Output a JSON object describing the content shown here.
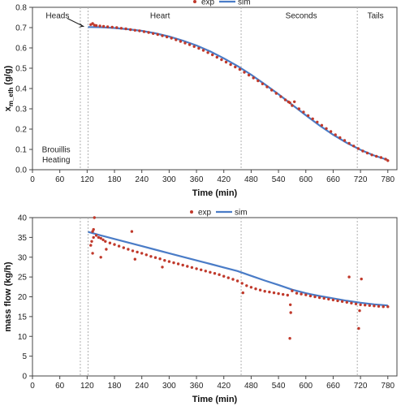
{
  "chart_data": [
    {
      "type": "scatter",
      "xlabel": "Time (min)",
      "ylabel_main": "x",
      "ylabel_sub": "m_eth",
      "ylabel_unit": "(g/g)",
      "xlim": [
        0,
        800
      ],
      "ylim": [
        0,
        0.8
      ],
      "xticks": [
        0,
        60,
        120,
        180,
        240,
        300,
        360,
        420,
        480,
        540,
        600,
        660,
        720,
        780
      ],
      "yticks": [
        0.0,
        0.1,
        0.2,
        0.3,
        0.4,
        0.5,
        0.6,
        0.7,
        0.8
      ],
      "ytick_labels": [
        "0.0",
        "0.1",
        "0.2",
        "0.3",
        "0.4",
        "0.5",
        "0.6",
        "0.7",
        "0.8"
      ],
      "legend": {
        "position": "top-center",
        "entries": [
          "exp",
          "sim"
        ]
      },
      "colors": {
        "exp": "#c0392b",
        "sim": "#4a7cc7",
        "divider": "#b0b0b0"
      },
      "dividers": [
        105,
        122,
        458,
        713
      ],
      "annotations": [
        {
          "text": "Heads",
          "x": 55,
          "y": 0.76
        },
        {
          "text": "Heart",
          "x": 280,
          "y": 0.76
        },
        {
          "text": "Seconds",
          "x": 590,
          "y": 0.76
        },
        {
          "text": "Tails",
          "x": 753,
          "y": 0.76
        },
        {
          "text": "Brouillis",
          "x": 52,
          "y": 0.1
        },
        {
          "text": "Heating",
          "x": 52,
          "y": 0.05
        }
      ],
      "series": [
        {
          "name": "sim",
          "kind": "line",
          "x": [
            122,
            150,
            180,
            210,
            240,
            270,
            300,
            330,
            360,
            390,
            420,
            450,
            480,
            510,
            540,
            570,
            600,
            630,
            660,
            690,
            720,
            750,
            780
          ],
          "y": [
            0.703,
            0.702,
            0.698,
            0.692,
            0.684,
            0.672,
            0.656,
            0.636,
            0.612,
            0.583,
            0.549,
            0.511,
            0.468,
            0.421,
            0.372,
            0.32,
            0.268,
            0.218,
            0.172,
            0.132,
            0.098,
            0.07,
            0.048
          ]
        },
        {
          "name": "exp",
          "kind": "points",
          "x": [
            128,
            132,
            136,
            140,
            148,
            156,
            165,
            175,
            185,
            195,
            205,
            215,
            225,
            235,
            245,
            255,
            265,
            275,
            285,
            295,
            305,
            315,
            325,
            335,
            345,
            355,
            365,
            375,
            385,
            395,
            405,
            415,
            425,
            435,
            445,
            455,
            465,
            475,
            485,
            495,
            505,
            515,
            525,
            535,
            545,
            555,
            562,
            565,
            570,
            575,
            585,
            595,
            605,
            615,
            625,
            635,
            645,
            655,
            665,
            675,
            685,
            695,
            705,
            715,
            725,
            735,
            745,
            755,
            765,
            775,
            780
          ],
          "y": [
            0.715,
            0.72,
            0.712,
            0.71,
            0.708,
            0.706,
            0.704,
            0.702,
            0.7,
            0.697,
            0.694,
            0.69,
            0.687,
            0.684,
            0.68,
            0.676,
            0.671,
            0.666,
            0.66,
            0.654,
            0.648,
            0.64,
            0.632,
            0.624,
            0.616,
            0.607,
            0.598,
            0.588,
            0.577,
            0.566,
            0.554,
            0.542,
            0.53,
            0.518,
            0.506,
            0.494,
            0.48,
            0.466,
            0.452,
            0.438,
            0.423,
            0.408,
            0.392,
            0.376,
            0.36,
            0.344,
            0.334,
            0.33,
            0.316,
            0.335,
            0.3,
            0.284,
            0.267,
            0.251,
            0.235,
            0.219,
            0.203,
            0.188,
            0.172,
            0.158,
            0.144,
            0.13,
            0.117,
            0.104,
            0.092,
            0.082,
            0.073,
            0.066,
            0.06,
            0.052,
            0.045
          ]
        }
      ]
    },
    {
      "type": "scatter",
      "xlabel": "Time (min)",
      "ylabel": "mass flow (kg/h)",
      "xlim": [
        0,
        800
      ],
      "ylim": [
        0,
        40
      ],
      "xticks": [
        0,
        60,
        120,
        180,
        240,
        300,
        360,
        420,
        480,
        540,
        600,
        660,
        720,
        780
      ],
      "yticks": [
        0,
        5,
        10,
        15,
        20,
        25,
        30,
        35,
        40
      ],
      "ytick_labels": [
        "0",
        "5",
        "10",
        "15",
        "20",
        "25",
        "30",
        "35",
        "40"
      ],
      "legend": {
        "position": "top-center",
        "entries": [
          "exp",
          "sim"
        ]
      },
      "colors": {
        "exp": "#c0392b",
        "sim": "#4a7cc7",
        "divider": "#b0b0b0"
      },
      "dividers": [
        105,
        122,
        458,
        713
      ],
      "series": [
        {
          "name": "sim",
          "kind": "line",
          "x": [
            122,
            150,
            180,
            210,
            240,
            270,
            300,
            330,
            360,
            390,
            420,
            450,
            480,
            510,
            540,
            570,
            600,
            630,
            660,
            690,
            720,
            750,
            780
          ],
          "y": [
            36.4,
            35.5,
            34.6,
            33.7,
            32.8,
            31.9,
            31.0,
            30.1,
            29.2,
            28.3,
            27.4,
            26.5,
            25.3,
            24.1,
            23.0,
            21.8,
            20.9,
            20.2,
            19.6,
            19.0,
            18.5,
            18.1,
            17.8
          ]
        },
        {
          "name": "exp",
          "kind": "points",
          "x": [
            130,
            132,
            134,
            136,
            140,
            145,
            150,
            155,
            160,
            170,
            180,
            190,
            200,
            210,
            220,
            230,
            240,
            250,
            260,
            270,
            280,
            290,
            300,
            310,
            320,
            330,
            340,
            350,
            360,
            370,
            380,
            390,
            400,
            410,
            420,
            430,
            440,
            450,
            460,
            470,
            480,
            490,
            500,
            510,
            520,
            530,
            540,
            550,
            560,
            570,
            580,
            590,
            600,
            610,
            620,
            630,
            640,
            650,
            660,
            670,
            680,
            690,
            700,
            710,
            720,
            730,
            740,
            750,
            760,
            770,
            780,
            128,
            132,
            134,
            150,
            162,
            218,
            225,
            285,
            462,
            565,
            566,
            567,
            695,
            716,
            718,
            722
          ],
          "y": [
            34.0,
            36.5,
            35.0,
            40.0,
            35.5,
            35.0,
            34.8,
            34.4,
            34.0,
            33.6,
            33.2,
            32.8,
            32.4,
            32.0,
            31.6,
            31.3,
            31.0,
            30.6,
            30.2,
            29.9,
            29.6,
            29.2,
            28.9,
            28.6,
            28.3,
            28.0,
            27.7,
            27.4,
            27.1,
            26.8,
            26.5,
            26.2,
            25.9,
            25.6,
            25.2,
            24.8,
            24.4,
            24.0,
            23.4,
            22.8,
            22.4,
            22.0,
            21.7,
            21.4,
            21.2,
            21.0,
            20.8,
            20.6,
            20.4,
            21.5,
            20.9,
            20.7,
            20.5,
            20.2,
            20.0,
            19.8,
            19.6,
            19.4,
            19.2,
            19.0,
            18.8,
            18.6,
            18.4,
            18.2,
            18.0,
            17.9,
            17.8,
            17.7,
            17.6,
            17.5,
            17.5,
            33.0,
            31.0,
            37.0,
            30.0,
            32.0,
            36.5,
            29.5,
            27.5,
            21.0,
            9.5,
            18.0,
            16.0,
            25.0,
            12.0,
            16.5,
            24.5
          ]
        }
      ]
    }
  ]
}
